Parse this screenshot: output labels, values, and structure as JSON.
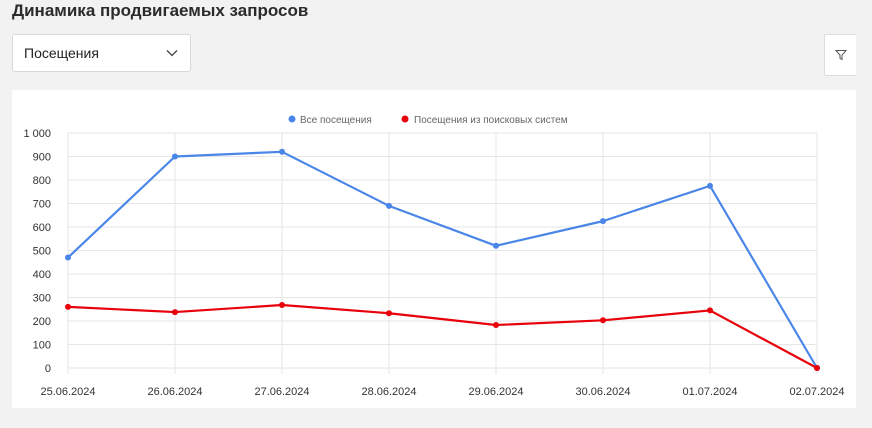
{
  "header": {
    "title": "Динамика продвигаемых запросов"
  },
  "metric_select": {
    "value": "Посещения"
  },
  "toolbar": {
    "filter_icon": "filter-icon"
  },
  "colors": {
    "all_visits": "#4a86e8",
    "search_visits": "#e8000b",
    "grid": "#e6e6e6"
  },
  "chart_data": {
    "type": "line",
    "title": "",
    "xlabel": "",
    "ylabel": "",
    "categories": [
      "25.06.2024",
      "26.06.2024",
      "27.06.2024",
      "28.06.2024",
      "29.06.2024",
      "30.06.2024",
      "01.07.2024",
      "02.07.2024"
    ],
    "series": [
      {
        "name": "Все посещения",
        "color": "#4a86e8",
        "values": [
          470,
          900,
          920,
          690,
          520,
          625,
          775,
          0
        ]
      },
      {
        "name": "Посещения из поисковых систем",
        "color": "#e8000b",
        "values": [
          260,
          238,
          268,
          233,
          183,
          203,
          245,
          0
        ]
      }
    ],
    "ylim": [
      0,
      1000
    ],
    "yticks": [
      0,
      100,
      200,
      300,
      400,
      500,
      600,
      700,
      800,
      900,
      1000
    ],
    "ytick_labels": [
      "0",
      "100",
      "200",
      "300",
      "400",
      "500",
      "600",
      "700",
      "800",
      "900",
      "1 000"
    ],
    "grid": true,
    "legend_position": "top-center"
  }
}
